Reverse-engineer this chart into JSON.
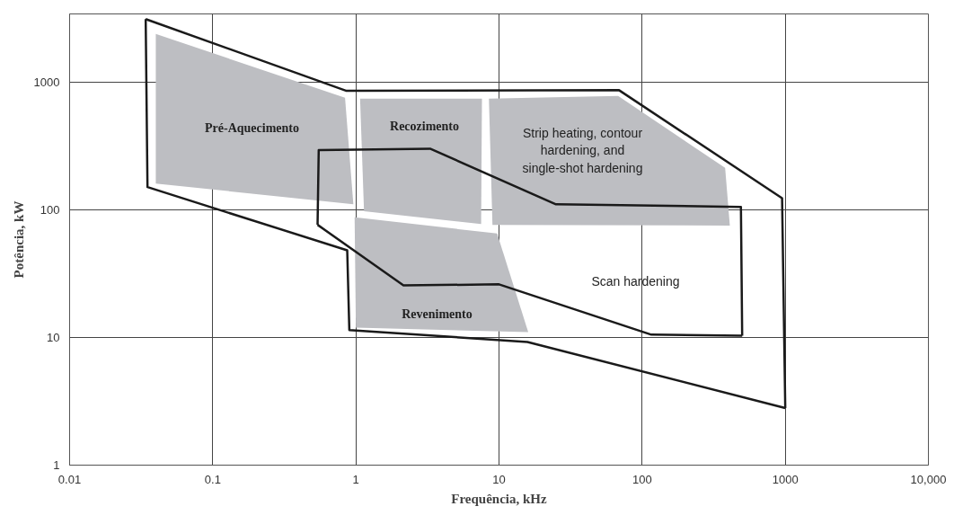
{
  "chart_data": {
    "type": "area",
    "xlabel": "Frequência, kHz",
    "ylabel": "Potência, kW",
    "log": "xy",
    "grid": true,
    "xlim": [
      0.01,
      10000
    ],
    "xticks": [
      0.01,
      0.1,
      1,
      10,
      100,
      1000,
      {
        "value": 10000,
        "label": "10,000"
      }
    ],
    "ylim": [
      1,
      3400
    ],
    "yticks": [
      1,
      10,
      100,
      1000
    ],
    "series": [
      {
        "color": "#bdbec2",
        "x": [
          0.04,
          0.84,
          0.96,
          0.04
        ],
        "values": [
          2370,
          750,
          110,
          160
        ]
      },
      {
        "color": "#bdbec2",
        "x": [
          1.07,
          7.6,
          7.5,
          1.14
        ],
        "values": [
          738,
          740,
          77,
          97
        ]
      },
      {
        "color": "#bdbec2",
        "x": [
          8.5,
          68,
          380,
          410,
          9
        ],
        "values": [
          740,
          775,
          212,
          75,
          76
        ]
      },
      {
        "color": "#bdbec2",
        "x": [
          0.98,
          9.7,
          16,
          1.0
        ],
        "values": [
          87,
          65,
          11,
          11.9
        ]
      },
      {
        "type": "line",
        "color": "#1a1a1a",
        "x": [
          0.034,
          0.86,
          69,
          950,
          1000
        ],
        "values": [
          3100,
          850,
          860,
          123,
          2.8
        ]
      },
      {
        "type": "line",
        "color": "#1a1a1a",
        "x": [
          0.034,
          0.035,
          0.87,
          0.9,
          15.8,
          1000
        ],
        "values": [
          3100,
          150,
          48,
          11.4,
          9.2,
          2.8
        ]
      },
      {
        "type": "line",
        "color": "#1a1a1a",
        "x": [
          0.54,
          0.55,
          3.3,
          25,
          490,
          500
        ],
        "values": [
          76,
          292,
          300,
          110,
          105,
          10.3
        ]
      },
      {
        "type": "line",
        "color": "#1a1a1a",
        "x": [
          0.54,
          2.15,
          10,
          116,
          500
        ],
        "values": [
          76,
          25.5,
          26,
          10.5,
          10.3
        ]
      }
    ],
    "annotations": [
      "Pré-Aquecimento",
      "Recozimento",
      "Strip heating, contour\nhardening, and\nsingle-shot hardening",
      "Scan hardening",
      "Revenimento"
    ]
  }
}
